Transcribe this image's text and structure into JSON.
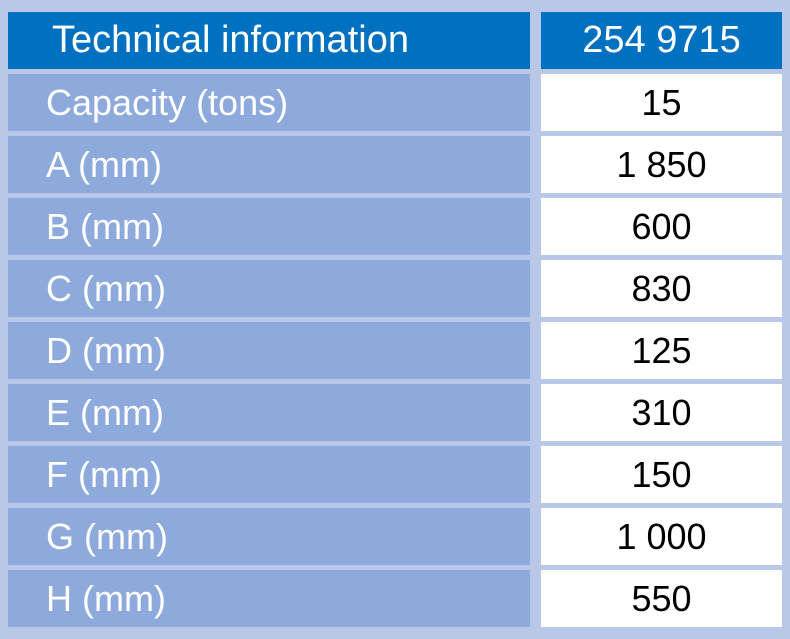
{
  "header": {
    "label": "Technical information",
    "value": "254 9715"
  },
  "rows": [
    {
      "label": "Capacity (tons)",
      "value": "15"
    },
    {
      "label": "A (mm)",
      "value": "1 850"
    },
    {
      "label": "B (mm)",
      "value": "600"
    },
    {
      "label": "C (mm)",
      "value": "830"
    },
    {
      "label": "D (mm)",
      "value": "125"
    },
    {
      "label": "E (mm)",
      "value": "310"
    },
    {
      "label": "F (mm)",
      "value": "150"
    },
    {
      "label": "G (mm)",
      "value": "1 000"
    },
    {
      "label": "H (mm)",
      "value": "550"
    }
  ],
  "colors": {
    "header_bg": "#0070c0",
    "label_bg": "#8ea9db",
    "frame_bg": "#b9c8e6",
    "value_bg": "#ffffff"
  }
}
